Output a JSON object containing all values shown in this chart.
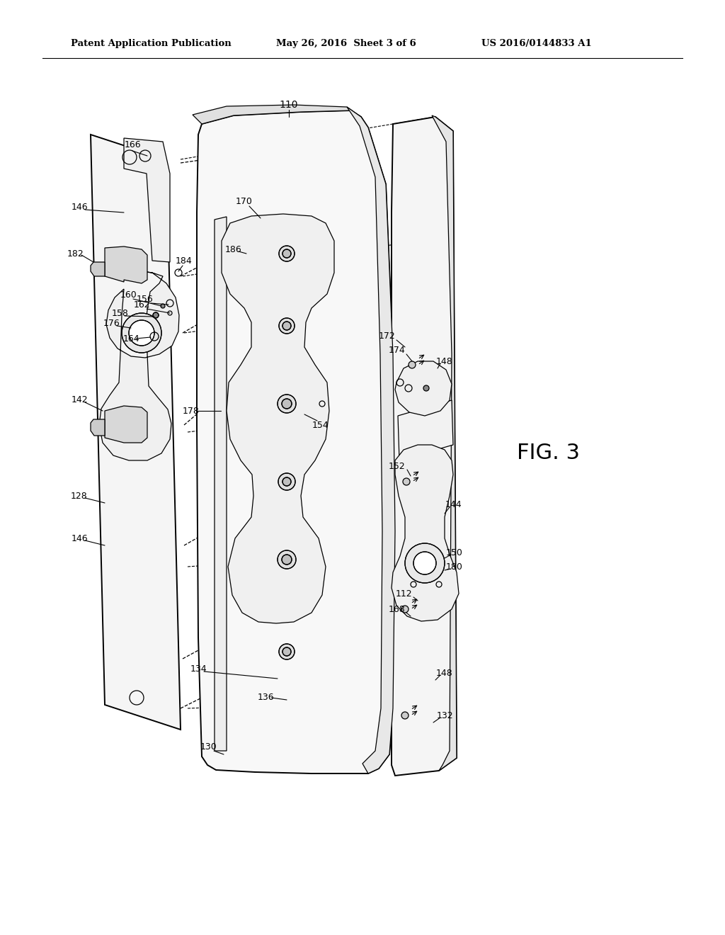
{
  "bg_color": "#ffffff",
  "header_left": "Patent Application Publication",
  "header_center": "May 26, 2016  Sheet 3 of 6",
  "header_right": "US 2016/0144833 A1",
  "fig_label": "FIG. 3"
}
